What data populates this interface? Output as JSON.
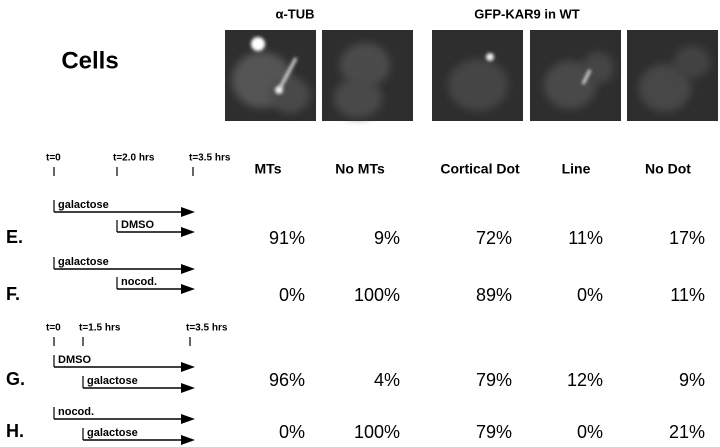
{
  "headers": {
    "alpha_tub": "α-TUB",
    "gfp_kar9": "GFP-KAR9 in WT",
    "cells": "Cells"
  },
  "columns": [
    "MTs",
    "No MTs",
    "Cortical Dot",
    "Line",
    "No Dot"
  ],
  "panels": [
    {
      "timeline": [
        "t=0",
        "t=2.0 hrs",
        "t=3.5 hrs"
      ],
      "rows": [
        {
          "label": "E.",
          "arrows": [
            "galactose",
            "DMSO"
          ],
          "values": [
            "91%",
            "9%",
            "72%",
            "11%",
            "17%"
          ]
        },
        {
          "label": "F.",
          "arrows": [
            "galactose",
            "nocod."
          ],
          "values": [
            "0%",
            "100%",
            "89%",
            "0%",
            "11%"
          ]
        }
      ]
    },
    {
      "timeline": [
        "t=0",
        "t=1.5 hrs",
        "t=3.5 hrs"
      ],
      "rows": [
        {
          "label": "G.",
          "arrows": [
            "DMSO",
            "galactose"
          ],
          "values": [
            "96%",
            "4%",
            "79%",
            "12%",
            "9%"
          ]
        },
        {
          "label": "H.",
          "arrows": [
            "nocod.",
            "galactose"
          ],
          "values": [
            "0%",
            "100%",
            "79%",
            "0%",
            "21%"
          ]
        }
      ]
    }
  ]
}
